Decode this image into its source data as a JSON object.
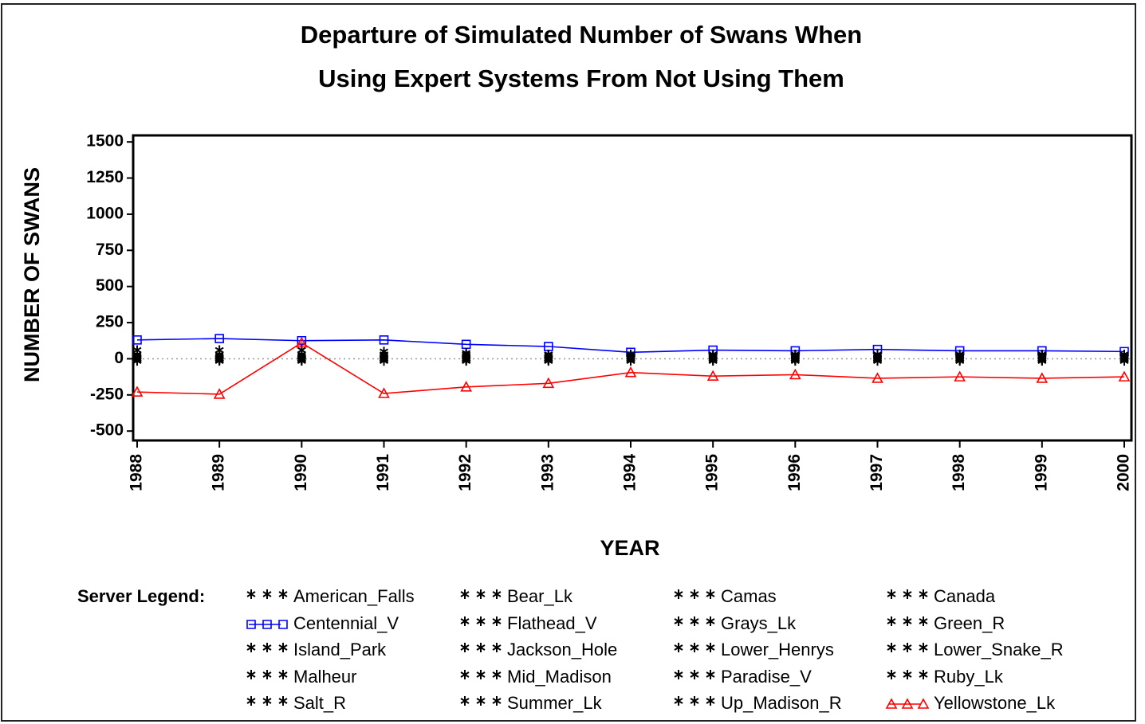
{
  "chart_data": {
    "type": "line",
    "title": [
      "Departure of Simulated Number of Swans When",
      "Using Expert Systems From Not Using Them"
    ],
    "xlabel": "YEAR",
    "ylabel": "NUMBER OF SWANS",
    "legend_title": "Server Legend:",
    "x": [
      1988,
      1989,
      1990,
      1991,
      1992,
      1993,
      1994,
      1995,
      1996,
      1997,
      1998,
      1999,
      2000
    ],
    "xlim": [
      1988,
      2000
    ],
    "xticks": [
      1988,
      1989,
      1990,
      1991,
      1992,
      1993,
      1994,
      1995,
      1996,
      1997,
      1998,
      1999,
      2000
    ],
    "ylim": [
      -565,
      1545
    ],
    "yticks": [
      -500,
      -250,
      0,
      250,
      500,
      750,
      1000,
      1250,
      1500
    ],
    "reference_line": 0,
    "series": [
      {
        "name": "American_Falls",
        "color": "#000000",
        "marker": "star",
        "values": [
          0,
          0,
          0,
          0,
          0,
          0,
          0,
          0,
          0,
          0,
          0,
          0,
          0
        ]
      },
      {
        "name": "Bear_Lk",
        "color": "#000000",
        "marker": "star",
        "values": [
          0,
          0,
          0,
          0,
          0,
          0,
          0,
          0,
          0,
          0,
          0,
          0,
          0
        ]
      },
      {
        "name": "Camas",
        "color": "#000000",
        "marker": "star",
        "values": [
          0,
          0,
          0,
          0,
          0,
          0,
          0,
          0,
          0,
          0,
          0,
          0,
          0
        ]
      },
      {
        "name": "Canada",
        "color": "#000000",
        "marker": "star",
        "values": [
          0,
          0,
          0,
          0,
          0,
          0,
          0,
          0,
          0,
          0,
          0,
          0,
          0
        ]
      },
      {
        "name": "Centennial_V",
        "color": "#0000ff",
        "marker": "square",
        "values": [
          130,
          140,
          125,
          130,
          100,
          85,
          45,
          60,
          55,
          65,
          55,
          55,
          50
        ]
      },
      {
        "name": "Flathead_V",
        "color": "#000000",
        "marker": "star",
        "values": [
          0,
          0,
          0,
          0,
          0,
          0,
          0,
          0,
          0,
          0,
          0,
          0,
          0
        ]
      },
      {
        "name": "Grays_Lk",
        "color": "#000000",
        "marker": "star",
        "values": [
          10,
          10,
          10,
          10,
          10,
          10,
          10,
          10,
          10,
          10,
          10,
          10,
          10
        ]
      },
      {
        "name": "Green_R",
        "color": "#000000",
        "marker": "star",
        "values": [
          0,
          0,
          0,
          0,
          0,
          0,
          0,
          0,
          0,
          0,
          0,
          0,
          0
        ]
      },
      {
        "name": "Island_Park",
        "color": "#000000",
        "marker": "star",
        "values": [
          60,
          60,
          60,
          50,
          40,
          30,
          10,
          10,
          10,
          10,
          10,
          10,
          10
        ]
      },
      {
        "name": "Jackson_Hole",
        "color": "#000000",
        "marker": "star",
        "values": [
          0,
          0,
          0,
          0,
          0,
          0,
          0,
          0,
          0,
          0,
          0,
          0,
          0
        ]
      },
      {
        "name": "Lower_Henrys",
        "color": "#000000",
        "marker": "star",
        "values": [
          20,
          20,
          20,
          20,
          20,
          20,
          20,
          20,
          20,
          20,
          20,
          20,
          20
        ]
      },
      {
        "name": "Lower_Snake_R",
        "color": "#000000",
        "marker": "star",
        "values": [
          -10,
          -10,
          -10,
          -10,
          -10,
          -10,
          -10,
          -10,
          -10,
          -10,
          -10,
          -10,
          -10
        ]
      },
      {
        "name": "Malheur",
        "color": "#000000",
        "marker": "star",
        "values": [
          0,
          0,
          0,
          0,
          0,
          0,
          0,
          0,
          0,
          0,
          0,
          0,
          0
        ]
      },
      {
        "name": "Mid_Madison",
        "color": "#000000",
        "marker": "star",
        "values": [
          10,
          10,
          10,
          10,
          10,
          10,
          10,
          10,
          10,
          10,
          10,
          10,
          10
        ]
      },
      {
        "name": "Paradise_V",
        "color": "#000000",
        "marker": "star",
        "values": [
          0,
          0,
          0,
          0,
          0,
          0,
          0,
          0,
          0,
          0,
          0,
          0,
          0
        ]
      },
      {
        "name": "Ruby_Lk",
        "color": "#000000",
        "marker": "star",
        "values": [
          0,
          0,
          0,
          0,
          0,
          0,
          0,
          0,
          0,
          0,
          0,
          0,
          0
        ]
      },
      {
        "name": "Salt_R",
        "color": "#000000",
        "marker": "star",
        "values": [
          0,
          0,
          0,
          0,
          0,
          0,
          0,
          0,
          0,
          0,
          0,
          0,
          0
        ]
      },
      {
        "name": "Summer_Lk",
        "color": "#000000",
        "marker": "star",
        "values": [
          30,
          30,
          30,
          30,
          30,
          30,
          30,
          30,
          30,
          30,
          30,
          30,
          30
        ]
      },
      {
        "name": "Up_Madison_R",
        "color": "#000000",
        "marker": "star",
        "values": [
          -15,
          -15,
          -15,
          -15,
          -15,
          -15,
          -15,
          -15,
          -15,
          -15,
          -15,
          -15,
          -15
        ]
      },
      {
        "name": "Yellowstone_Lk",
        "color": "#ff0000",
        "marker": "triangle",
        "values": [
          -230,
          -245,
          110,
          -240,
          -195,
          -170,
          -95,
          -120,
          -110,
          -135,
          -125,
          -135,
          -125
        ]
      }
    ]
  }
}
